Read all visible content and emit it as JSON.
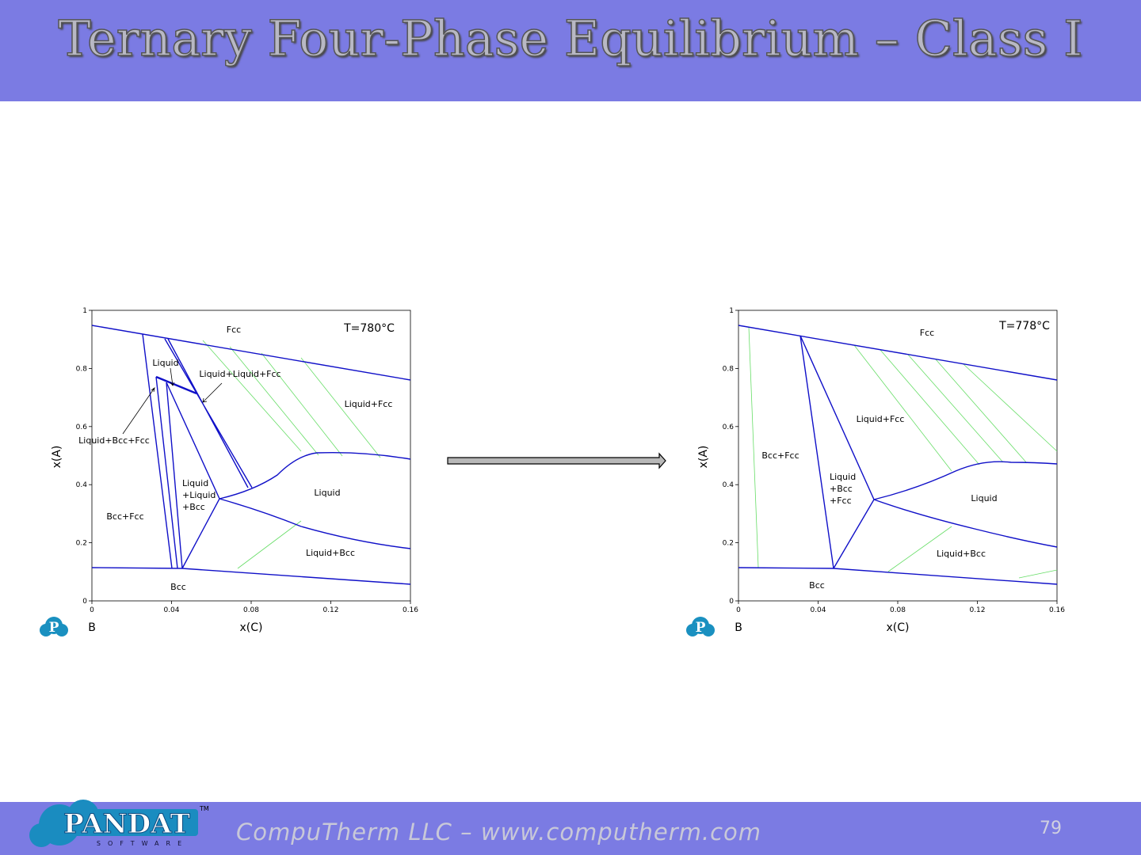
{
  "header": {
    "title": "Ternary Four-Phase Equilibrium – Class I"
  },
  "plots": [
    {
      "temperature": "T=780°C",
      "x_label": "x(C)",
      "y_label": "x(A)",
      "corner_label": "B",
      "logo_mark": "P",
      "xlim": [
        0,
        0.16
      ],
      "xticks": [
        0,
        0.04,
        0.08,
        0.12,
        0.16
      ],
      "ylim": [
        0,
        1
      ],
      "yticks": [
        0,
        0.2,
        0.4,
        0.6,
        0.8,
        1
      ],
      "regions": [
        "Fcc",
        "Liquid",
        "Liquid+Liquid+Fcc",
        "Liquid+Fcc",
        "Liquid+Bcc+Fcc",
        [
          "Liquid",
          "+Liquid",
          "+Bcc"
        ],
        "Liquid",
        "Bcc+Fcc",
        "Liquid+Bcc",
        "Bcc"
      ]
    },
    {
      "temperature": "T=778°C",
      "x_label": "x(C)",
      "y_label": "x(A)",
      "corner_label": "B",
      "logo_mark": "P",
      "xlim": [
        0,
        0.16
      ],
      "xticks": [
        0,
        0.04,
        0.08,
        0.12,
        0.16
      ],
      "ylim": [
        0,
        1
      ],
      "yticks": [
        0,
        0.2,
        0.4,
        0.6,
        0.8,
        1
      ],
      "regions": [
        "Fcc",
        "Bcc+Fcc",
        "Liquid+Fcc",
        [
          "Liquid",
          "+Bcc",
          "+Fcc"
        ],
        "Liquid",
        "Liquid+Bcc",
        "Bcc"
      ]
    }
  ],
  "footer": {
    "logo": "PANDAT",
    "logo_sub": "SOFTWARE",
    "trademark": "TM",
    "company": "CompuTherm LLC – www.computherm.com",
    "page_number": 79
  }
}
